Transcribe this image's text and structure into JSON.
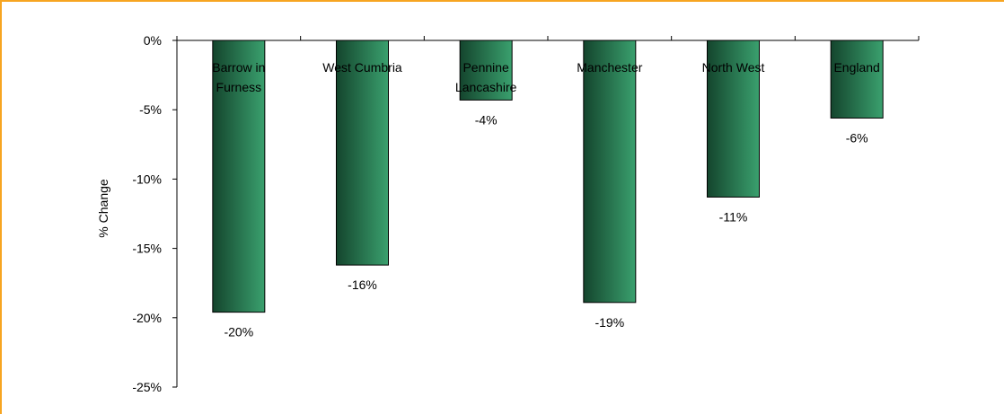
{
  "chart_data": {
    "type": "bar",
    "categories": [
      "Barrow in Furness",
      "West Cumbria",
      "Pennine Lancashire",
      "Manchester",
      "North West",
      "England"
    ],
    "category_lines": [
      [
        "Barrow in",
        "Furness"
      ],
      [
        "West Cumbria"
      ],
      [
        "Pennine",
        "Lancashire"
      ],
      [
        "Manchester"
      ],
      [
        "North West"
      ],
      [
        "England"
      ]
    ],
    "values": [
      -19.6,
      -16.2,
      -4.3,
      -18.9,
      -11.3,
      -5.6
    ],
    "data_labels": [
      "-20%",
      "-16%",
      "-4%",
      "-19%",
      "-11%",
      "-6%"
    ],
    "ylabel": "% Change",
    "ylim": [
      -25,
      0
    ],
    "yticks": [
      0,
      -5,
      -10,
      -15,
      -20,
      -25
    ],
    "ytick_labels": [
      "0%",
      "-5%",
      "-10%",
      "-15%",
      "-20%",
      "-25%"
    ],
    "grid": false,
    "legend": "none",
    "bar_color_dark": "#14452D",
    "bar_color_light": "#3AA06E",
    "frame_color": "#F7A521"
  }
}
